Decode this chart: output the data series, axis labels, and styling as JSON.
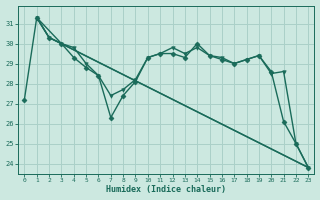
{
  "xlabel": "Humidex (Indice chaleur)",
  "background_color": "#cce8e0",
  "grid_color": "#aad0c8",
  "line_color": "#1a6b5a",
  "xlim": [
    -0.5,
    23.5
  ],
  "ylim": [
    23.5,
    31.9
  ],
  "yticks": [
    24,
    25,
    26,
    27,
    28,
    29,
    30,
    31
  ],
  "xticks": [
    0,
    1,
    2,
    3,
    4,
    5,
    6,
    7,
    8,
    9,
    10,
    11,
    12,
    13,
    14,
    15,
    16,
    17,
    18,
    19,
    20,
    21,
    22,
    23
  ],
  "series": [
    {
      "x": [
        0,
        1,
        2,
        3,
        4,
        5,
        6,
        7,
        8,
        9,
        10,
        11,
        12,
        13,
        14,
        15,
        16,
        17,
        18,
        19,
        20,
        21,
        22,
        23
      ],
      "y": [
        27.2,
        31.3,
        30.3,
        30.0,
        29.3,
        28.8,
        28.4,
        26.3,
        27.4,
        28.1,
        29.3,
        29.5,
        29.5,
        29.3,
        30.0,
        29.4,
        29.2,
        29.0,
        29.2,
        29.4,
        28.6,
        26.1,
        25.0,
        23.8
      ],
      "marker": "D",
      "markersize": 2.5,
      "linewidth": 1.0
    },
    {
      "x": [
        1,
        2,
        3,
        4,
        5,
        6,
        7,
        8,
        9,
        10,
        11,
        12,
        13,
        14,
        15,
        16,
        17,
        18,
        19,
        20,
        21,
        22,
        23
      ],
      "y": [
        31.3,
        30.3,
        30.0,
        29.8,
        29.0,
        28.4,
        27.4,
        27.7,
        28.2,
        29.3,
        29.5,
        29.8,
        29.5,
        29.8,
        29.4,
        29.3,
        29.0,
        29.2,
        29.4,
        28.5,
        28.6,
        25.0,
        23.8
      ],
      "marker": "v",
      "markersize": 2.5,
      "linewidth": 1.0
    },
    {
      "x": [
        1,
        3,
        23
      ],
      "y": [
        31.3,
        30.0,
        23.8
      ],
      "marker": null,
      "markersize": 0,
      "linewidth": 1.0
    },
    {
      "x": [
        1,
        2,
        23
      ],
      "y": [
        31.3,
        30.3,
        23.8
      ],
      "marker": null,
      "markersize": 0,
      "linewidth": 1.0
    }
  ]
}
